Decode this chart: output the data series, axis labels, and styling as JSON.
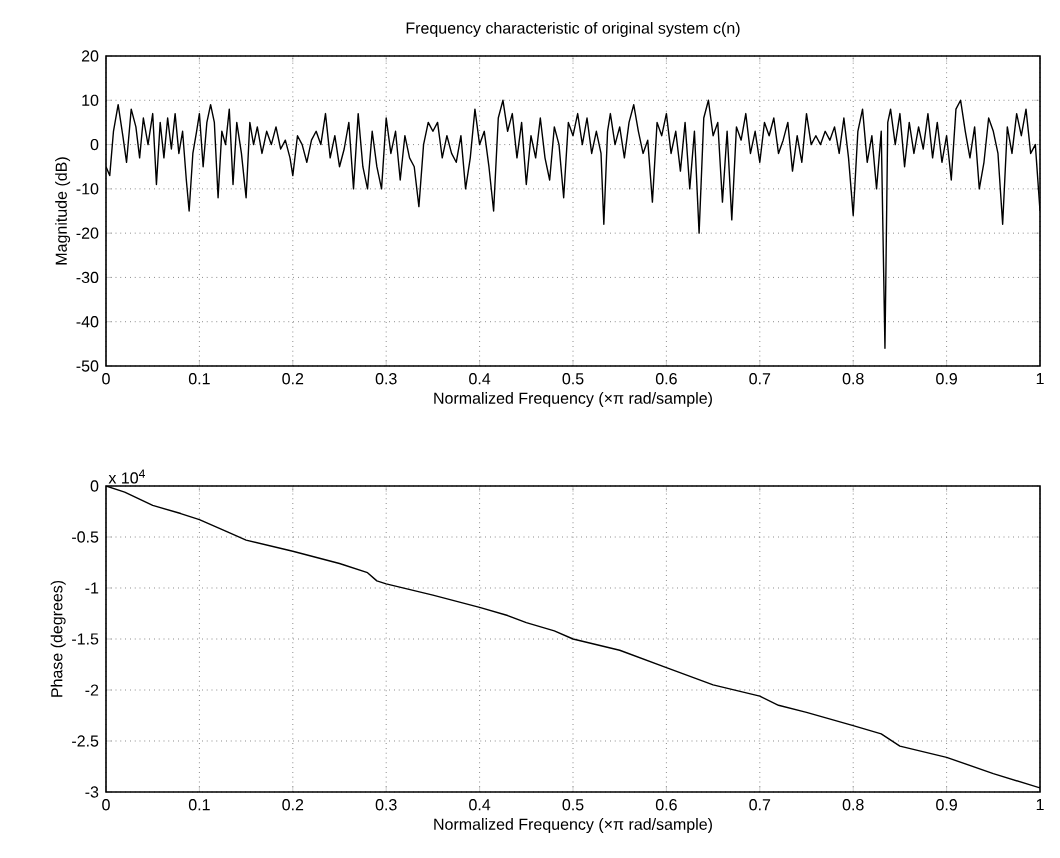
{
  "chart_data": [
    {
      "type": "line",
      "title": "Frequency characteristic of original system c(n)",
      "xlabel": "Normalized Frequency  (×π rad/sample)",
      "ylabel": "Magnitude (dB)",
      "xlim": [
        0,
        1
      ],
      "ylim": [
        -50,
        20
      ],
      "xticks": [
        0,
        0.1,
        0.2,
        0.3,
        0.4,
        0.5,
        0.6,
        0.7,
        0.8,
        0.9,
        1
      ],
      "yticks": [
        -50,
        -40,
        -30,
        -20,
        -10,
        0,
        10,
        20
      ],
      "grid": true,
      "line_style": "solid",
      "series": [
        {
          "color": "#000000",
          "x": [
            0,
            0.004,
            0.008,
            0.013,
            0.018,
            0.022,
            0.027,
            0.032,
            0.036,
            0.04,
            0.045,
            0.05,
            0.054,
            0.058,
            0.062,
            0.066,
            0.07,
            0.074,
            0.078,
            0.082,
            0.086,
            0.089,
            0.093,
            0.097,
            0.1,
            0.104,
            0.108,
            0.112,
            0.116,
            0.12,
            0.124,
            0.128,
            0.132,
            0.136,
            0.14,
            0.145,
            0.15,
            0.154,
            0.158,
            0.162,
            0.167,
            0.172,
            0.177,
            0.182,
            0.187,
            0.192,
            0.197,
            0.2,
            0.205,
            0.21,
            0.215,
            0.22,
            0.225,
            0.23,
            0.235,
            0.24,
            0.245,
            0.25,
            0.255,
            0.26,
            0.265,
            0.27,
            0.275,
            0.28,
            0.285,
            0.29,
            0.295,
            0.3,
            0.305,
            0.31,
            0.315,
            0.32,
            0.325,
            0.33,
            0.335,
            0.34,
            0.345,
            0.35,
            0.355,
            0.36,
            0.365,
            0.37,
            0.375,
            0.38,
            0.385,
            0.39,
            0.395,
            0.4,
            0.405,
            0.41,
            0.415,
            0.42,
            0.425,
            0.43,
            0.435,
            0.44,
            0.445,
            0.45,
            0.455,
            0.46,
            0.465,
            0.47,
            0.475,
            0.48,
            0.485,
            0.49,
            0.495,
            0.5,
            0.505,
            0.51,
            0.515,
            0.52,
            0.525,
            0.53,
            0.533,
            0.537,
            0.54,
            0.545,
            0.55,
            0.555,
            0.56,
            0.565,
            0.57,
            0.575,
            0.58,
            0.585,
            0.59,
            0.595,
            0.6,
            0.605,
            0.61,
            0.615,
            0.62,
            0.625,
            0.63,
            0.635,
            0.64,
            0.645,
            0.65,
            0.655,
            0.66,
            0.665,
            0.67,
            0.675,
            0.68,
            0.685,
            0.69,
            0.695,
            0.7,
            0.705,
            0.71,
            0.715,
            0.72,
            0.725,
            0.73,
            0.735,
            0.74,
            0.745,
            0.75,
            0.755,
            0.76,
            0.765,
            0.77,
            0.775,
            0.78,
            0.785,
            0.79,
            0.795,
            0.8,
            0.805,
            0.81,
            0.815,
            0.82,
            0.825,
            0.83,
            0.834,
            0.837,
            0.84,
            0.845,
            0.85,
            0.855,
            0.86,
            0.865,
            0.87,
            0.875,
            0.88,
            0.885,
            0.89,
            0.895,
            0.9,
            0.905,
            0.91,
            0.915,
            0.92,
            0.925,
            0.93,
            0.935,
            0.94,
            0.945,
            0.95,
            0.955,
            0.96,
            0.965,
            0.97,
            0.975,
            0.98,
            0.985,
            0.99,
            0.995,
            1
          ],
          "values": [
            -5,
            -7,
            3,
            9,
            2,
            -4,
            8,
            4,
            -3,
            6,
            0,
            7,
            -9,
            5,
            -3,
            6,
            -1,
            7,
            -2,
            3,
            -8,
            -15,
            -2,
            3,
            7,
            -5,
            5,
            9,
            5,
            -12,
            3,
            0,
            8,
            -9,
            5,
            -2,
            -12,
            5,
            0,
            4,
            -2,
            3,
            0,
            4,
            -1,
            1,
            -3,
            -7,
            2,
            0,
            -4,
            1,
            3,
            0,
            7,
            -3,
            2,
            -5,
            -1,
            5,
            -10,
            7,
            -5,
            -10,
            3,
            -5,
            -10,
            6,
            -2,
            3,
            -8,
            2,
            -3,
            -5,
            -14,
            0,
            5,
            3,
            5,
            -3,
            2,
            -2,
            -4,
            2,
            -10,
            -3,
            8,
            0,
            3,
            -5,
            -15,
            6,
            10,
            3,
            7,
            -3,
            5,
            -9,
            2,
            -3,
            6,
            -3,
            -8,
            4,
            0,
            -12,
            5,
            2,
            7,
            0,
            6,
            -2,
            3,
            -2,
            -18,
            3,
            7,
            0,
            4,
            -3,
            5,
            9,
            3,
            -2,
            1,
            -13,
            5,
            2,
            7,
            -2,
            3,
            -6,
            5,
            -10,
            3,
            -20,
            6,
            10,
            2,
            5,
            -13,
            3,
            -17,
            4,
            1,
            7,
            -2,
            3,
            -4,
            5,
            2,
            6,
            -2,
            1,
            5,
            -6,
            2,
            -4,
            7,
            0,
            2,
            0,
            3,
            1,
            4,
            -2,
            6,
            -3,
            -16,
            3,
            8,
            -4,
            2,
            -10,
            3,
            -46,
            5,
            8,
            0,
            7,
            -5,
            5,
            -2,
            4,
            -1,
            7,
            -3,
            5,
            -4,
            2,
            -8,
            8,
            10,
            3,
            -3,
            4,
            -10,
            -4,
            6,
            3,
            -2,
            -18,
            4,
            -2,
            7,
            2,
            8,
            -2,
            0,
            -15
          ]
        }
      ]
    },
    {
      "type": "line",
      "xlabel": "Normalized Frequency  (×π rad/sample)",
      "ylabel": "Phase (degrees)",
      "xlim": [
        0,
        1
      ],
      "ylim": [
        -3,
        0
      ],
      "xticks": [
        0,
        0.1,
        0.2,
        0.3,
        0.4,
        0.5,
        0.6,
        0.7,
        0.8,
        0.9,
        1
      ],
      "yticks": [
        -3,
        -2.5,
        -2,
        -1.5,
        -1,
        -0.5,
        0
      ],
      "grid": true,
      "line_style": "solid",
      "annotations": [
        "x 10$^{4}$"
      ],
      "series": [
        {
          "color": "#000000",
          "x": [
            0,
            0.02,
            0.05,
            0.08,
            0.1,
            0.13,
            0.15,
            0.2,
            0.25,
            0.28,
            0.29,
            0.3,
            0.35,
            0.4,
            0.43,
            0.45,
            0.48,
            0.5,
            0.55,
            0.6,
            0.65,
            0.7,
            0.72,
            0.75,
            0.8,
            0.83,
            0.85,
            0.9,
            0.95,
            1
          ],
          "values": [
            0,
            -0.06,
            -0.19,
            -0.27,
            -0.33,
            -0.45,
            -0.53,
            -0.64,
            -0.76,
            -0.85,
            -0.93,
            -0.96,
            -1.07,
            -1.19,
            -1.27,
            -1.34,
            -1.42,
            -1.5,
            -1.61,
            -1.78,
            -1.95,
            -2.06,
            -2.15,
            -2.22,
            -2.35,
            -2.43,
            -2.55,
            -2.66,
            -2.82,
            -2.96
          ]
        }
      ]
    }
  ]
}
